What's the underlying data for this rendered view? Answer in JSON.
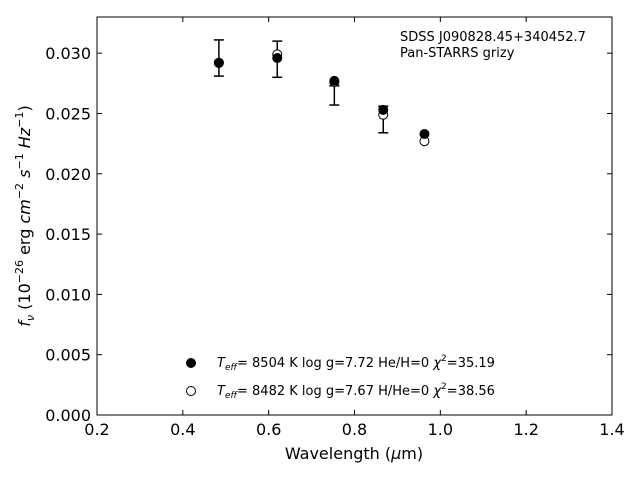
{
  "chart_data": {
    "type": "scatter",
    "title": "",
    "xlabel": "Wavelength (μm)",
    "ylabel": "f_ν (10^-26 erg cm^-2 s^-1 Hz^-1)",
    "xlim": [
      0.2,
      1.4
    ],
    "ylim": [
      0.0,
      0.033
    ],
    "xticks": [
      0.2,
      0.4,
      0.6,
      0.8,
      1.0,
      1.2,
      1.4
    ],
    "xtick_labels": [
      "0.2",
      "0.4",
      "0.6",
      "0.8",
      "1.0",
      "1.2",
      "1.4"
    ],
    "yticks": [
      0.0,
      0.005,
      0.01,
      0.015,
      0.02,
      0.025,
      0.03
    ],
    "ytick_labels": [
      "0.000",
      "0.005",
      "0.010",
      "0.015",
      "0.020",
      "0.025",
      "0.030"
    ],
    "grid": false,
    "annotations": [
      "SDSS J090828.45+340452.7",
      "Pan-STARRS grizy"
    ],
    "observed": {
      "x": [
        0.484,
        0.62,
        0.753,
        0.867,
        0.963
      ],
      "y": [
        0.0296,
        0.0295,
        0.0265,
        0.0245,
        null
      ],
      "yerr": [
        0.0015,
        0.0015,
        0.0008,
        0.0011,
        null
      ]
    },
    "series": [
      {
        "marker": "filled",
        "x": [
          0.484,
          0.62,
          0.753,
          0.867,
          0.963
        ],
        "y": [
          0.0292,
          0.0296,
          0.0277,
          0.0253,
          0.0233
        ],
        "legend": {
          "teff": "8504 K",
          "logg": "log g=7.72",
          "comp": "He/H=0",
          "chi2": "35.19"
        }
      },
      {
        "marker": "open",
        "x": [
          0.484,
          0.62,
          0.753,
          0.867,
          0.963
        ],
        "y": [
          0.0292,
          0.0299,
          0.0276,
          0.0249,
          0.0227
        ],
        "legend": {
          "teff": "8482 K",
          "logg": "log g=7.67",
          "comp": "H/He=0",
          "chi2": "38.56"
        }
      }
    ],
    "legend_location": "lower-center"
  }
}
